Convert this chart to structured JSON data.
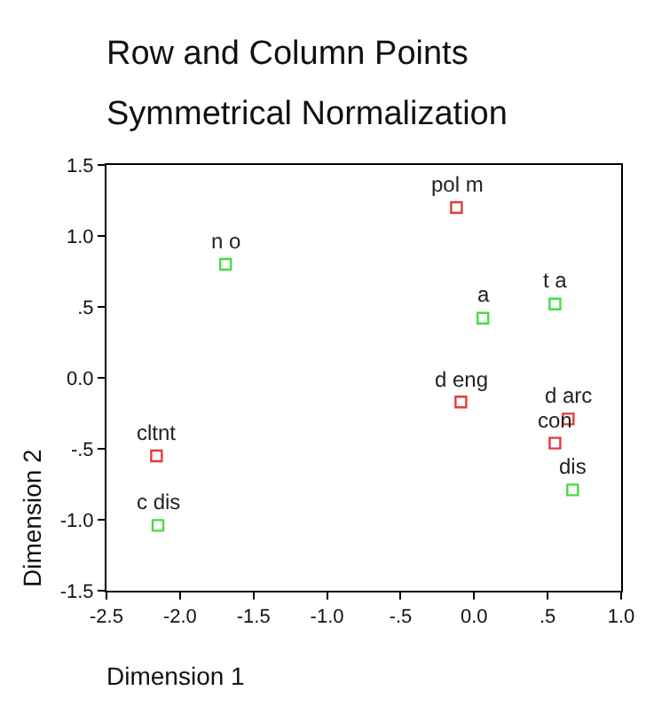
{
  "chart_data": {
    "type": "scatter",
    "title": "Row and Column Points",
    "subtitle": "Symmetrical Normalization",
    "xlabel": "Dimension 1",
    "ylabel": "Dimension 2",
    "series": [
      {
        "color": "#e8383c",
        "x": [
          -0.12,
          -0.09,
          0.64,
          0.55,
          -2.16
        ],
        "values": [
          1.2,
          -0.17,
          -0.29,
          -0.46,
          -0.55
        ]
      },
      {
        "color": "#44dd44",
        "x": [
          -1.69,
          0.06,
          0.55,
          0.67,
          -2.15
        ],
        "values": [
          0.8,
          0.42,
          0.52,
          -0.79,
          -1.04
        ]
      }
    ],
    "annotations": [
      {
        "text": "pol m",
        "x": -0.12,
        "y": 1.2
      },
      {
        "text": "d eng",
        "x": -0.09,
        "y": -0.17
      },
      {
        "text": "d arc",
        "x": 0.64,
        "y": -0.29
      },
      {
        "text": "con",
        "x": 0.55,
        "y": -0.46
      },
      {
        "text": "cltnt",
        "x": -2.16,
        "y": -0.55
      },
      {
        "text": "n o",
        "x": -1.69,
        "y": 0.8
      },
      {
        "text": "a",
        "x": 0.06,
        "y": 0.42
      },
      {
        "text": "t a",
        "x": 0.55,
        "y": 0.52
      },
      {
        "text": "dis",
        "x": 0.67,
        "y": -0.79
      },
      {
        "text": "c dis",
        "x": -2.15,
        "y": -1.04
      }
    ],
    "xlim": [
      -2.5,
      1.0
    ],
    "xticks": [
      {
        "value": -2.5,
        "label": "-2.5"
      },
      {
        "value": -2,
        "label": "-2.0"
      },
      {
        "value": -1.5,
        "label": "-1.5"
      },
      {
        "value": -1,
        "label": "-1.0"
      },
      {
        "value": -0.5,
        "label": "-.5"
      },
      {
        "value": 0,
        "label": "0.0"
      },
      {
        "value": 0.5,
        "label": ".5"
      },
      {
        "value": 1,
        "label": "1.0"
      }
    ],
    "ylim": [
      -1.5,
      1.5
    ],
    "yticks": [
      {
        "value": -1.5,
        "label": "-1.5"
      },
      {
        "value": -1,
        "label": "-1.0"
      },
      {
        "value": -0.5,
        "label": "-.5"
      },
      {
        "value": 0,
        "label": "0.0"
      },
      {
        "value": 0.5,
        "label": ".5"
      },
      {
        "value": 1,
        "label": "1.0"
      },
      {
        "value": 1.5,
        "label": "1.5"
      }
    ],
    "grid": false,
    "marker": "square"
  }
}
